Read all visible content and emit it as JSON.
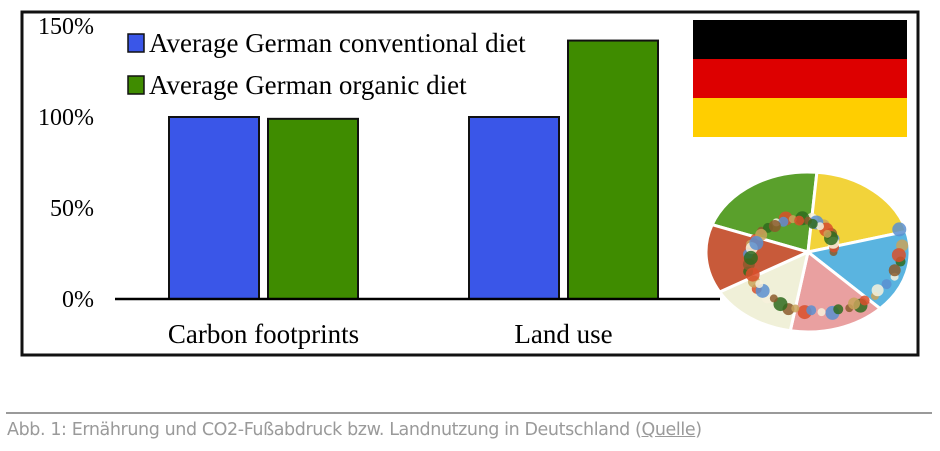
{
  "chart_data": {
    "type": "bar",
    "title": "",
    "xlabel": "",
    "ylabel": "",
    "categories": [
      "Carbon footprints",
      "Land use"
    ],
    "series": [
      {
        "name": "Average German conventional diet",
        "values": [
          100,
          100
        ],
        "color": "#3a56e8"
      },
      {
        "name": "Average German organic diet",
        "values": [
          99,
          142
        ],
        "color": "#3f8c00"
      }
    ],
    "ylim": [
      0,
      150
    ],
    "yticks": [
      0,
      50,
      100,
      150
    ],
    "ytick_labels": [
      "0%",
      "50%",
      "100%",
      "150%"
    ],
    "grid": false,
    "legend_position": "top-left"
  },
  "decorations": {
    "flag": {
      "name": "germany-flag",
      "colors": [
        "#000000",
        "#dd0000",
        "#ffce00"
      ]
    },
    "food_plate": {
      "name": "food-pyramid-plate-icon",
      "colors": [
        "#5aa02c",
        "#f2d33a",
        "#5ab4e0",
        "#e9a0a0",
        "#f0f0d8",
        "#c85a3a"
      ]
    }
  },
  "caption": {
    "text": "Abb. 1: Ernährung und CO2-Fußabdruck bzw. Landnutzung in Deutschland (",
    "link": "Quelle",
    "close": ")"
  }
}
